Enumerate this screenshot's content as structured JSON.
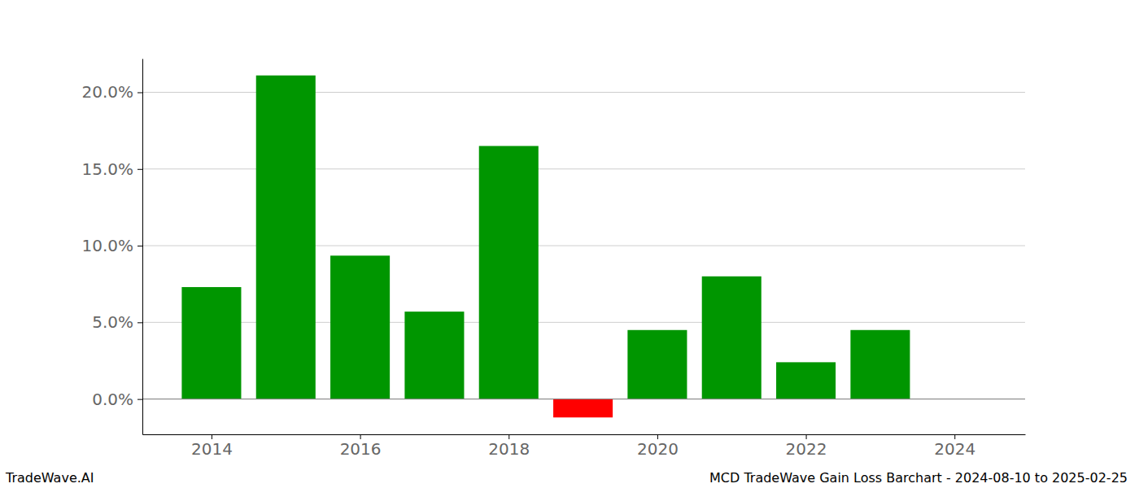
{
  "chart_data": {
    "type": "bar",
    "title": "MCD TradeWave Gain Loss Barchart - 2024-08-10 to 2025-02-25",
    "annotations": [
      "TradeWave.AI"
    ],
    "x": [
      2014,
      2015,
      2016,
      2017,
      2018,
      2019,
      2020,
      2021,
      2022,
      2023
    ],
    "values": [
      7.3,
      21.1,
      9.35,
      5.7,
      16.5,
      -1.2,
      4.5,
      8.0,
      2.4,
      4.5
    ],
    "colors": [
      "#009600",
      "#009600",
      "#009600",
      "#009600",
      "#009600",
      "#ff0000",
      "#009600",
      "#009600",
      "#009600",
      "#009600"
    ],
    "xlim": [
      2013.07,
      2024.95
    ],
    "xticks": [
      2014,
      2016,
      2018,
      2020,
      2022,
      2024
    ],
    "ylim": [
      -2.3,
      22.2
    ],
    "yticks": [
      {
        "value": 0,
        "label": "0.0%"
      },
      {
        "value": 5,
        "label": "5.0%"
      },
      {
        "value": 10,
        "label": "10.0%"
      },
      {
        "value": 15,
        "label": "15.0%"
      },
      {
        "value": 20,
        "label": "20.0%"
      }
    ],
    "grid": true
  }
}
